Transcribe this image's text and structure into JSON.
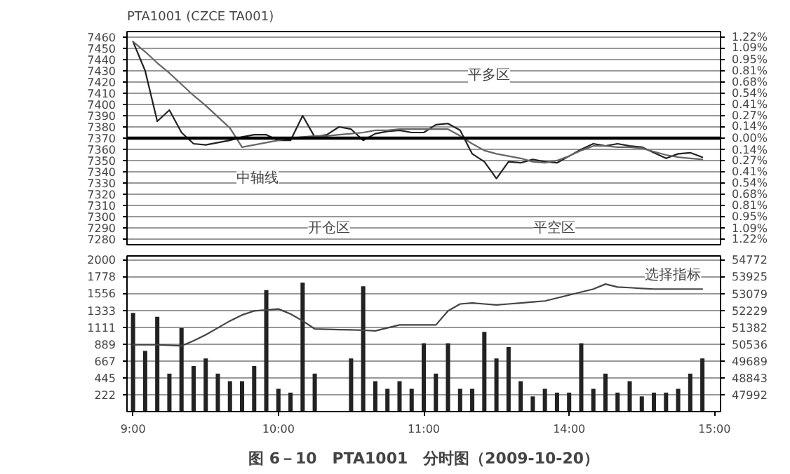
{
  "chart_data": [
    {
      "type": "line",
      "title": "PTA1001 (CZCE TA001)",
      "categories": [
        null,
        null,
        null,
        null,
        null,
        null,
        null,
        null,
        null,
        null,
        null,
        null,
        null,
        null,
        null,
        null,
        null,
        null,
        null,
        null,
        null,
        null,
        null,
        null,
        null,
        null,
        null,
        null,
        null,
        null,
        null,
        null,
        null,
        null,
        null,
        null,
        null,
        null,
        null,
        null,
        null,
        null,
        null,
        null,
        null,
        null,
        null,
        null,
        null
      ],
      "ylim": [
        7275,
        7465
      ],
      "y2lim": [
        -1.289,
        1.289
      ],
      "yticks": [
        7280,
        7290,
        7300,
        7310,
        7320,
        7330,
        7340,
        7350,
        7360,
        7370,
        7380,
        7390,
        7400,
        7410,
        7420,
        7430,
        7440,
        7450,
        7460
      ],
      "y2ticks": [
        {
          "value": -1.22,
          "label": "1.22%"
        },
        {
          "value": -1.09,
          "label": "1.09%"
        },
        {
          "value": -0.95,
          "label": "0.95%"
        },
        {
          "value": -0.81,
          "label": "0.81%"
        },
        {
          "value": -0.68,
          "label": "0.68%"
        },
        {
          "value": -0.54,
          "label": "0.54%"
        },
        {
          "value": -0.41,
          "label": "0.41%"
        },
        {
          "value": -0.27,
          "label": "0.27%"
        },
        {
          "value": -0.14,
          "label": "0.14%"
        },
        {
          "value": 0,
          "label": "0.00%"
        },
        {
          "value": 0.14,
          "label": "0.14%"
        },
        {
          "value": 0.27,
          "label": "0.27%"
        },
        {
          "value": 0.41,
          "label": "0.41%"
        },
        {
          "value": 0.54,
          "label": "0.54%"
        },
        {
          "value": 0.68,
          "label": "0.68%"
        },
        {
          "value": 0.81,
          "label": "0.81%"
        },
        {
          "value": 0.95,
          "label": "0.95%"
        },
        {
          "value": 1.09,
          "label": "1.09%"
        },
        {
          "value": 1.22,
          "label": "1.22%"
        }
      ],
      "tick_labels": "y",
      "grid": "y",
      "series": [
        {
          "color": "#222222",
          "values": [
            7456,
            7430,
            7385,
            7395,
            7375,
            7365,
            7364,
            7366,
            7368,
            7371,
            7373,
            7373,
            7368,
            7368,
            7390,
            7371,
            7373,
            7380,
            7378,
            7368,
            7374,
            7376,
            7377,
            7375,
            7375,
            7382,
            7383,
            7377,
            7356,
            7349,
            7334,
            7349,
            7348,
            7351,
            7349,
            7348,
            7354,
            7360,
            7365,
            7363,
            7365,
            7363,
            7362,
            7357,
            7352,
            7356,
            7357,
            7353,
            null
          ]
        },
        {
          "color": "#666666",
          "values": [
            7456,
            7447,
            7437,
            7428,
            7418,
            7408,
            7399,
            7389,
            7379,
            7362,
            7364,
            7366,
            7368,
            7370,
            7371,
            7372,
            7372,
            7373,
            7374,
            7375,
            7377,
            7377,
            7378,
            7378,
            7378,
            7378,
            7378,
            7372,
            7365,
            7359,
            7356,
            7354,
            7352,
            7349,
            7348,
            7350,
            7354,
            7359,
            7363,
            7363,
            7362,
            7362,
            7361,
            7358,
            7355,
            7353,
            7352,
            7351,
            null
          ]
        }
      ],
      "ref_lines": [
        {
          "axis": "y",
          "value": 7370,
          "color": "#000000"
        }
      ],
      "annotations": [
        "中轴线",
        "开仓区",
        "平多区",
        "平空区"
      ]
    },
    {
      "type": "bar",
      "categories": [
        "9:00",
        null,
        null,
        null,
        null,
        null,
        null,
        null,
        null,
        null,
        null,
        null,
        "10:00",
        null,
        null,
        null,
        null,
        null,
        null,
        null,
        null,
        null,
        null,
        null,
        "11:00",
        null,
        null,
        null,
        null,
        null,
        null,
        null,
        null,
        null,
        null,
        null,
        "14:00",
        null,
        null,
        null,
        null,
        null,
        null,
        null,
        null,
        null,
        null,
        null,
        "15:00"
      ],
      "ylim": [
        0,
        2050
      ],
      "y2lim": [
        47146,
        54963
      ],
      "yticks": [
        222,
        445,
        667,
        889,
        1111,
        1333,
        1556,
        1778,
        2000
      ],
      "y2ticks": [
        47992,
        48843,
        49689,
        50536,
        51382,
        52229,
        53079,
        53925,
        54772
      ],
      "grid": "y",
      "series": [
        {
          "type": "bar",
          "color": "#222222",
          "values": [
            1300,
            800,
            1250,
            500,
            1100,
            600,
            700,
            500,
            400,
            400,
            600,
            1600,
            300,
            250,
            1700,
            500,
            null,
            null,
            700,
            1650,
            400,
            300,
            400,
            300,
            900,
            500,
            900,
            300,
            300,
            1050,
            700,
            850,
            400,
            200,
            300,
            250,
            250,
            900,
            300,
            500,
            250,
            400,
            200,
            250,
            250,
            300,
            500,
            700,
            null
          ]
        },
        {
          "type": "line",
          "axis": "y2",
          "color": "#444444",
          "values": [
            50500,
            50500,
            50500,
            50480,
            50450,
            50700,
            51000,
            51350,
            51700,
            52000,
            52200,
            52250,
            52300,
            52050,
            51700,
            51300,
            51280,
            51260,
            51250,
            51230,
            51200,
            51350,
            51500,
            51500,
            51500,
            51500,
            52200,
            52550,
            52600,
            52550,
            52500,
            52550,
            52600,
            52650,
            52700,
            52850,
            53000,
            53150,
            53300,
            53550,
            53400,
            53370,
            53330,
            53300,
            53300,
            53300,
            53300,
            53300,
            null
          ]
        }
      ],
      "annotations": [
        "选择指标",
        "图 6－10　PTA1001　分时图（2009-10-20）"
      ]
    }
  ]
}
